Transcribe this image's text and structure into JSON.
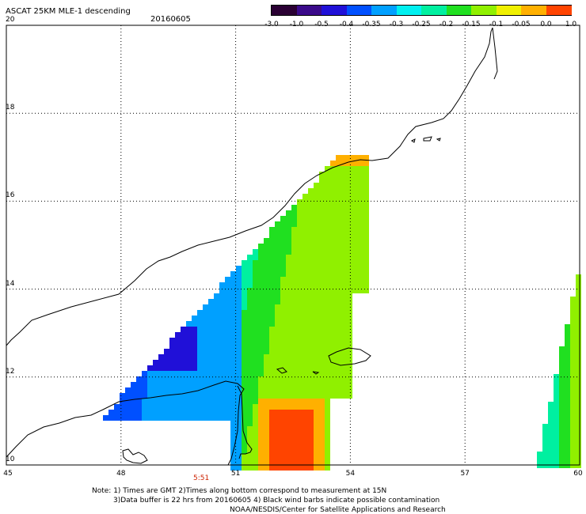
{
  "title": "ASCAT 25KM MLE-1 descending",
  "date": "20160605",
  "colorbar": {
    "labels": [
      "-3.0",
      "-1.0",
      "-0.5",
      "-0.4",
      "-0.35",
      "-0.3",
      "-0.25",
      "-0.2",
      "-0.15",
      "-0.1",
      "-0.05",
      "0.0",
      "1.0"
    ],
    "colors": [
      "#2a0033",
      "#3a0a8a",
      "#2010d8",
      "#0050ff",
      "#00a0ff",
      "#00f0f0",
      "#00f0a0",
      "#20e020",
      "#90f000",
      "#f0f000",
      "#ffb000",
      "#ff4400"
    ]
  },
  "axes": {
    "lat_labels": [
      "20",
      "18",
      "16",
      "14",
      "12",
      "10"
    ],
    "lon_labels": [
      "45",
      "48",
      "51",
      "54",
      "57",
      "60"
    ],
    "lat_range": [
      10,
      20
    ],
    "lon_range": [
      45,
      60
    ]
  },
  "time_marker": "5:51",
  "notes": {
    "line1": "Note: 1) Times are GMT 2)Times along bottom correspond to measurement at 15N",
    "line2": "3)Data buffer is 22 hrs from 20160605 4) Black wind barbs indicate possible contamination",
    "credit": "NOAA/NESDIS/Center for Satellite Applications and Research"
  }
}
